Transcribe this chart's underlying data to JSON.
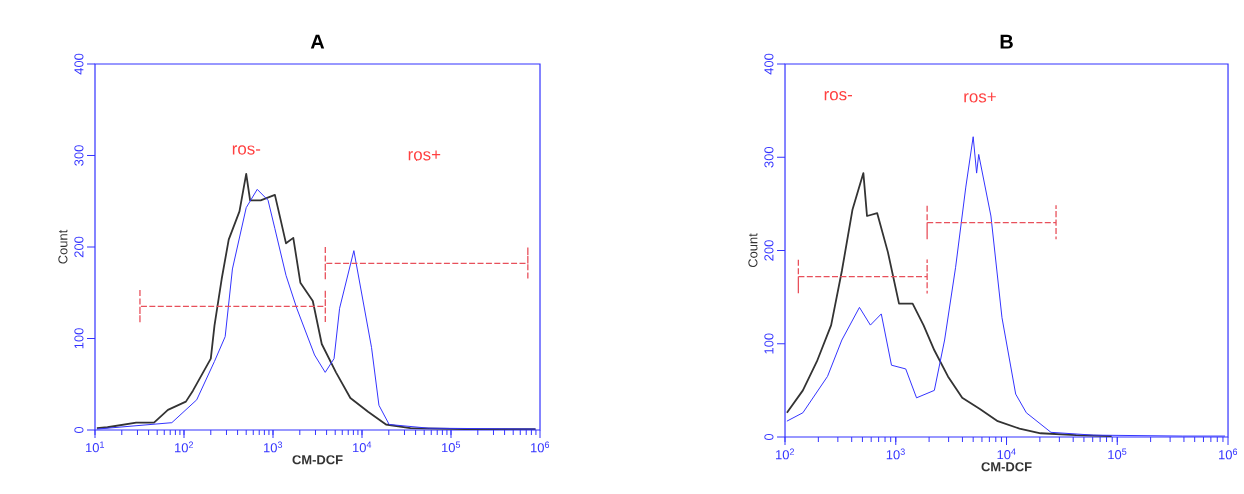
{
  "chart_data": [
    {
      "type": "line",
      "title": "A",
      "xlabel": "CM-DCF",
      "ylabel": "Count",
      "log": "x",
      "marker": "none",
      "xlim": [
        10,
        1000000
      ],
      "ylim": [
        0,
        400
      ],
      "xticks": [
        {
          "value": 10,
          "label": "10$^{1}$"
        },
        {
          "value": 100,
          "label": "10$^{2}$"
        },
        {
          "value": 1000,
          "label": "10$^{3}$"
        },
        {
          "value": 10000,
          "label": "10$^{4}$"
        },
        {
          "value": 100000,
          "label": "10$^{5}$"
        },
        {
          "value": 1000000,
          "label": "10$^{6}$"
        }
      ],
      "yticks": [
        0,
        100,
        200,
        300,
        400
      ],
      "series": [
        {
          "color": "#333333",
          "x": [
            10.5,
            13.8,
            29,
            46,
            66,
            105,
            126,
            200,
            220,
            265,
            318,
            420,
            500,
            553,
            727,
            1050,
            1210,
            1400,
            1690,
            2030,
            2800,
            3530,
            5100,
            7400,
            11700,
            18600,
            35000,
            141000,
            890000
          ],
          "values": [
            2,
            3,
            8,
            8,
            22,
            31,
            43,
            78,
            114,
            165,
            208,
            239,
            280,
            251,
            251,
            257,
            231,
            204,
            210,
            161,
            141,
            94,
            63,
            35,
            20,
            6,
            2,
            1,
            1
          ]
        },
        {
          "color": "#3333ff",
          "x": [
            10.5,
            73,
            139,
            220,
            290,
            350,
            500,
            665,
            880,
            1050,
            1400,
            1850,
            2930,
            3860,
            4850,
            5600,
            8100,
            12800,
            15500,
            20200,
            56000,
            890000
          ],
          "values": [
            1,
            8,
            33,
            75,
            102,
            176,
            243,
            263,
            251,
            220,
            169,
            133,
            82,
            63,
            78,
            133,
            196,
            90,
            27,
            6,
            2,
            1
          ]
        },
        {
          "color": "#e8505b",
          "line_style": "dashed",
          "x": [
            32,
            32,
            32,
            3870,
            3870,
            3870
          ],
          "values": [
            153,
            117,
            135,
            135,
            153,
            117
          ]
        },
        {
          "color": "#e8505b",
          "line_style": "dashed",
          "x": [
            3870,
            3870,
            3870,
            730000,
            730000,
            730000
          ],
          "values": [
            200,
            164,
            182,
            182,
            200,
            164
          ]
        }
      ],
      "annotations": [
        "ros-",
        "ros+"
      ]
    },
    {
      "type": "line",
      "title": "B",
      "xlabel": "CM-DCF",
      "ylabel": "Count",
      "log": "x",
      "marker": "none",
      "xlim": [
        100,
        1000000
      ],
      "ylim": [
        0,
        400
      ],
      "xticks": [
        {
          "value": 100,
          "label": "10$^{2}$"
        },
        {
          "value": 1000,
          "label": "10$^{3}$"
        },
        {
          "value": 10000,
          "label": "10$^{4}$"
        },
        {
          "value": 100000,
          "label": "10$^{5}$"
        },
        {
          "value": 1000000,
          "label": "10$^{6}$"
        }
      ],
      "yticks": [
        0,
        100,
        200,
        300,
        400
      ],
      "series": [
        {
          "color": "#333333",
          "x": [
            104,
            145,
            194,
            261,
            326,
            407,
            510,
            550,
            680,
            850,
            1070,
            1420,
            1780,
            2230,
            2960,
            3980,
            5750,
            8330,
            13100,
            20300,
            42600,
            89000
          ],
          "values": [
            26,
            50,
            81,
            120,
            178,
            244,
            283,
            237,
            240,
            198,
            143,
            143,
            120,
            93,
            65,
            42,
            30,
            17,
            9,
            4,
            2,
            1
          ]
        },
        {
          "color": "#3333ff",
          "x": [
            104,
            145,
            242,
            326,
            470,
            590,
            740,
            915,
            1230,
            1540,
            2230,
            2760,
            3470,
            4290,
            5000,
            5370,
            5610,
            7230,
            9100,
            12100,
            15100,
            25200,
            61000,
            390000,
            940000
          ],
          "values": [
            17,
            26,
            65,
            104,
            139,
            120,
            132,
            77,
            73,
            42,
            50,
            104,
            182,
            268,
            322,
            283,
            303,
            237,
            128,
            46,
            26,
            5,
            2,
            1,
            1
          ]
        },
        {
          "color": "#e8505b",
          "line_style": "dashed",
          "x": [
            132,
            132,
            132,
            1920,
            1920,
            1920
          ],
          "values": [
            190,
            154,
            172,
            172,
            190,
            154
          ]
        },
        {
          "color": "#e8505b",
          "line_style": "dashed",
          "x": [
            1920,
            1920,
            1920,
            28000,
            28000,
            28000
          ],
          "values": [
            248,
            212,
            230,
            230,
            248,
            212
          ]
        }
      ],
      "annotations": [
        "ros-",
        "ros+"
      ]
    }
  ]
}
